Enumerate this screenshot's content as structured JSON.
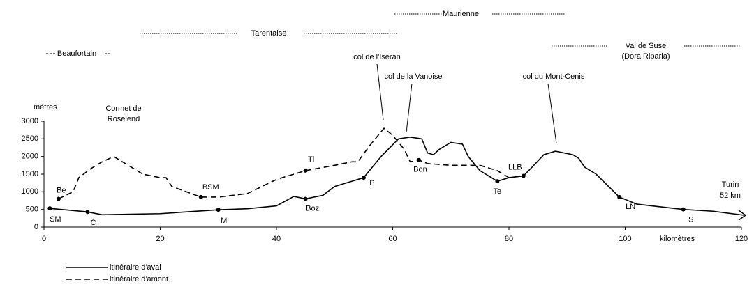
{
  "chart_data": {
    "type": "line",
    "ylabel": "mètres",
    "xlabel": "kilomètres",
    "end_label": [
      "Turin",
      "52 km"
    ],
    "xlim": [
      0,
      120
    ],
    "xticks": [
      0,
      20,
      40,
      60,
      80,
      100,
      120
    ],
    "ylim": [
      0,
      3000
    ],
    "yticks": [
      0,
      500,
      1000,
      1500,
      2000,
      2500,
      3000
    ],
    "grid": false,
    "regions": [
      "Maurienne",
      "Tarentaise",
      [
        "Val de Suse",
        "(Dora Riparia)"
      ],
      "Beaufortain"
    ],
    "annotations": [
      [
        "col de l'Iseran"
      ],
      [
        "col de la Vanoise"
      ],
      [
        "col du Mont-Cenis"
      ],
      [
        "Cormet de",
        "Roselend"
      ]
    ],
    "series": [
      {
        "name": "itinéraire d'aval",
        "color": "#000000",
        "dash": false,
        "x": [
          1,
          7.5,
          10,
          20,
          30,
          35,
          40,
          43,
          45,
          48,
          50,
          53,
          55,
          58,
          61,
          63,
          65,
          66,
          67,
          68,
          70,
          72,
          73,
          75,
          78,
          80,
          82.5,
          84,
          86,
          88,
          91,
          92,
          93,
          95,
          99,
          102,
          110,
          115
        ],
        "values": [
          530,
          430,
          350,
          380,
          490,
          520,
          600,
          870,
          800,
          900,
          1150,
          1300,
          1400,
          2000,
          2500,
          2550,
          2500,
          2100,
          2050,
          2200,
          2400,
          2350,
          2000,
          1600,
          1300,
          1400,
          1450,
          1700,
          2050,
          2150,
          2050,
          1950,
          1700,
          1500,
          850,
          650,
          500,
          450
        ],
        "point_labels": [
          "SM",
          "C",
          null,
          null,
          "M",
          null,
          null,
          null,
          "Boz",
          null,
          null,
          null,
          "P",
          null,
          null,
          null,
          null,
          null,
          null,
          null,
          null,
          null,
          null,
          null,
          "Te",
          null,
          "LLB",
          null,
          null,
          null,
          null,
          null,
          null,
          null,
          "LN",
          null,
          "S",
          null
        ]
      },
      {
        "name": "itinéraire d'amont",
        "color": "#000000",
        "dash": true,
        "x": [
          2.5,
          5,
          6,
          8,
          10,
          12,
          13,
          15,
          17,
          20,
          21,
          22,
          27,
          30,
          35,
          40,
          45,
          50,
          53,
          54,
          56,
          58.5,
          60,
          62,
          63,
          64.5,
          66,
          70,
          75,
          78,
          80,
          82.5
        ],
        "values": [
          800,
          1000,
          1400,
          1650,
          1850,
          2000,
          1900,
          1700,
          1500,
          1400,
          1400,
          1150,
          850,
          850,
          950,
          1350,
          1600,
          1750,
          1850,
          1850,
          2300,
          2800,
          2600,
          2200,
          1850,
          1900,
          1800,
          1750,
          1750,
          1600,
          1400,
          1450
        ],
        "point_labels": [
          "Be",
          null,
          null,
          null,
          null,
          null,
          null,
          null,
          null,
          null,
          null,
          null,
          "BSM",
          null,
          null,
          null,
          "Tl",
          null,
          null,
          null,
          null,
          null,
          null,
          null,
          null,
          "Bon",
          null,
          null,
          null,
          null,
          null,
          null
        ]
      }
    ]
  }
}
